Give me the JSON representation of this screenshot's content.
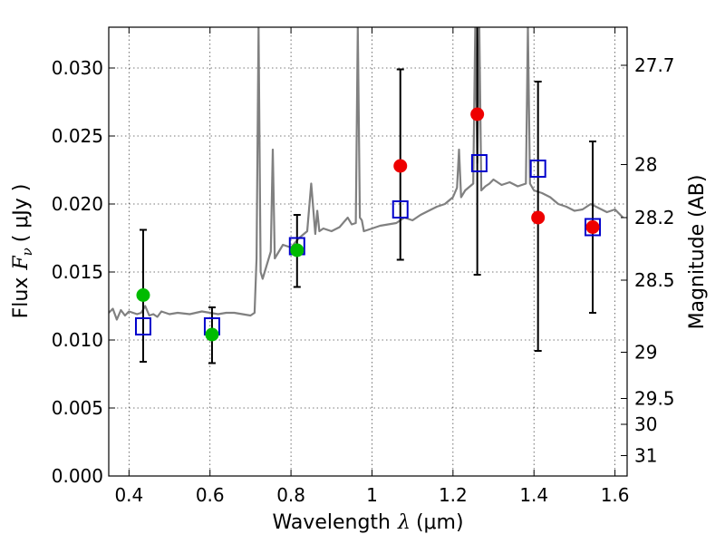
{
  "chart_data": {
    "type": "scatter",
    "xlabel_prefix": "Wavelength",
    "xlabel_symbol": "λ",
    "xlabel_unit": "(μm)",
    "ylabel_prefix": "Flux",
    "ylabel_symbol": "F",
    "ylabel_sub": "ν",
    "ylabel_unit": "( μJy )",
    "y2label": "Magnitude (AB)",
    "xlim": [
      0.35,
      1.63
    ],
    "ylim": [
      0.0,
      0.033
    ],
    "grid": true,
    "x_ticks": [
      0.4,
      0.6,
      0.8,
      1.0,
      1.2,
      1.4,
      1.6
    ],
    "x_tick_labels": [
      "0.4",
      "0.6",
      "0.8",
      "1",
      "1.2",
      "1.4",
      "1.6"
    ],
    "y_ticks": [
      0.0,
      0.005,
      0.01,
      0.015,
      0.02,
      0.025,
      0.03
    ],
    "y_tick_labels": [
      "0.000",
      "0.005",
      "0.010",
      "0.015",
      "0.020",
      "0.025",
      "0.030"
    ],
    "y2_ticks": [
      {
        "label": "27.7",
        "flux": 0.0302
      },
      {
        "label": "28",
        "flux": 0.0229
      },
      {
        "label": "28.2",
        "flux": 0.019
      },
      {
        "label": "28.5",
        "flux": 0.0144
      },
      {
        "label": "29",
        "flux": 0.0091
      },
      {
        "label": "29.5",
        "flux": 0.0057
      },
      {
        "label": "30",
        "flux": 0.0038
      },
      {
        "label": "31",
        "flux": 0.0015
      }
    ],
    "series": [
      {
        "style": "line",
        "color": "#808080",
        "x": [
          0.35,
          0.36,
          0.37,
          0.38,
          0.39,
          0.4,
          0.41,
          0.42,
          0.43,
          0.44,
          0.45,
          0.46,
          0.47,
          0.48,
          0.5,
          0.52,
          0.55,
          0.58,
          0.6,
          0.62,
          0.64,
          0.66,
          0.68,
          0.7,
          0.71,
          0.715,
          0.72,
          0.725,
          0.73,
          0.74,
          0.75,
          0.755,
          0.76,
          0.77,
          0.78,
          0.8,
          0.82,
          0.84,
          0.85,
          0.86,
          0.865,
          0.87,
          0.88,
          0.9,
          0.92,
          0.94,
          0.95,
          0.96,
          0.965,
          0.97,
          0.975,
          0.98,
          1.0,
          1.02,
          1.04,
          1.06,
          1.08,
          1.1,
          1.12,
          1.14,
          1.16,
          1.18,
          1.2,
          1.21,
          1.215,
          1.22,
          1.23,
          1.25,
          1.255,
          1.26,
          1.265,
          1.27,
          1.28,
          1.29,
          1.3,
          1.32,
          1.34,
          1.36,
          1.38,
          1.385,
          1.39,
          1.4,
          1.42,
          1.44,
          1.46,
          1.48,
          1.5,
          1.52,
          1.54,
          1.56,
          1.58,
          1.6,
          1.62
        ],
        "y": [
          0.012,
          0.0123,
          0.0115,
          0.0122,
          0.0118,
          0.0121,
          0.012,
          0.0119,
          0.012,
          0.0125,
          0.0118,
          0.0119,
          0.0117,
          0.0121,
          0.0119,
          0.012,
          0.0119,
          0.0121,
          0.012,
          0.0119,
          0.012,
          0.012,
          0.0119,
          0.0118,
          0.012,
          0.016,
          0.033,
          0.015,
          0.0145,
          0.0155,
          0.0165,
          0.024,
          0.016,
          0.0165,
          0.017,
          0.0168,
          0.0175,
          0.018,
          0.0215,
          0.0178,
          0.0195,
          0.018,
          0.0182,
          0.018,
          0.0183,
          0.019,
          0.0185,
          0.0186,
          0.033,
          0.019,
          0.0188,
          0.018,
          0.0182,
          0.0184,
          0.0185,
          0.0186,
          0.019,
          0.0188,
          0.0192,
          0.0195,
          0.0198,
          0.02,
          0.0205,
          0.0212,
          0.024,
          0.0205,
          0.021,
          0.0215,
          0.033,
          0.023,
          0.033,
          0.021,
          0.0213,
          0.0215,
          0.0218,
          0.0214,
          0.0216,
          0.0213,
          0.0215,
          0.033,
          0.0215,
          0.021,
          0.0208,
          0.0205,
          0.02,
          0.0198,
          0.0195,
          0.0196,
          0.02,
          0.0197,
          0.0194,
          0.0196,
          0.019
        ]
      },
      {
        "style": "open-square",
        "color": "#0000cc",
        "x": [
          0.435,
          0.605,
          0.815,
          1.07,
          1.265,
          1.41,
          1.545
        ],
        "y": [
          0.011,
          0.011,
          0.0169,
          0.0196,
          0.023,
          0.0226,
          0.0183
        ]
      },
      {
        "style": "filled-circle",
        "color": "#00bb00",
        "x": [
          0.435,
          0.605,
          0.815
        ],
        "y": [
          0.0133,
          0.0104,
          0.0166
        ]
      },
      {
        "style": "filled-circle",
        "color": "#ee0000",
        "x": [
          1.07,
          1.26,
          1.41,
          1.545
        ],
        "y": [
          0.0228,
          0.0266,
          0.019,
          0.0183
        ]
      }
    ],
    "error_bars": [
      {
        "x": 0.435,
        "low": 0.0084,
        "high": 0.0181
      },
      {
        "x": 0.605,
        "low": 0.0083,
        "high": 0.0124
      },
      {
        "x": 0.815,
        "low": 0.0139,
        "high": 0.0192
      },
      {
        "x": 1.07,
        "low": 0.0159,
        "high": 0.0299
      },
      {
        "x": 1.26,
        "low": 0.0148,
        "high": 0.033
      },
      {
        "x": 1.41,
        "low": 0.0092,
        "high": 0.029
      },
      {
        "x": 1.545,
        "low": 0.012,
        "high": 0.0246
      }
    ]
  }
}
